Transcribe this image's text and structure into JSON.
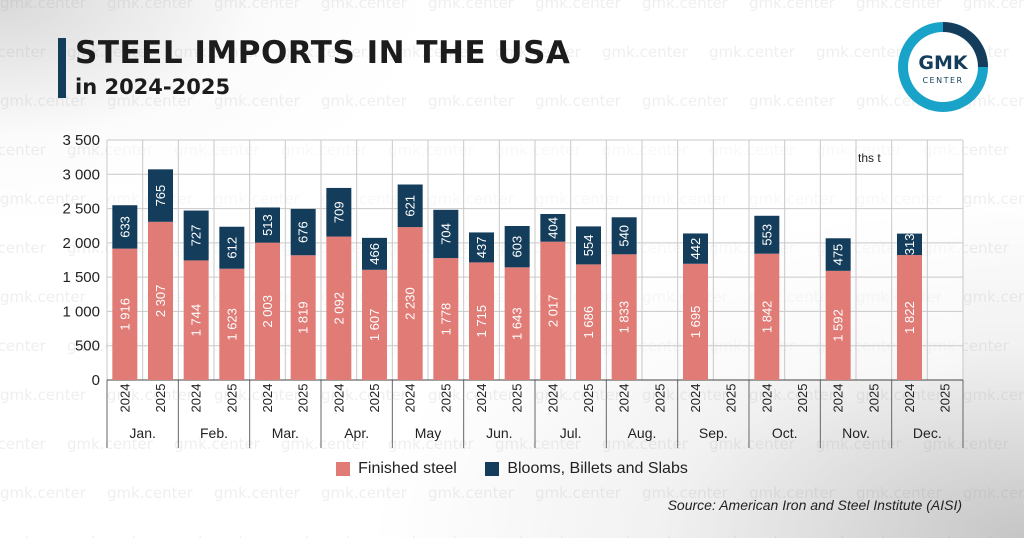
{
  "title": "STEEL IMPORTS IN THE USA",
  "subtitle": "in 2024-2025",
  "watermark_text": "gmk.center",
  "logo": {
    "line1": "GMK",
    "line2": "CENTER",
    "ring_color": "#1aa3c8",
    "text_color": "#143d5c"
  },
  "unit_label": "ths t",
  "source": "Source: American Iron and Steel Institute (AISI)",
  "colors": {
    "finished": "#e07b76",
    "blooms": "#143d5c"
  },
  "chart_data": {
    "type": "bar",
    "stacked": true,
    "ylim": [
      0,
      3500
    ],
    "yticks": [
      "0",
      "500",
      "1 000",
      "1 500",
      "2 000",
      "2 500",
      "3 000",
      "3 500"
    ],
    "grid": true,
    "legend_position": "bottom",
    "months": [
      "Jan.",
      "Feb.",
      "Mar.",
      "Apr.",
      "May",
      "Jun.",
      "Jul.",
      "Aug.",
      "Sep.",
      "Oct.",
      "Nov.",
      "Dec."
    ],
    "years": [
      "2024",
      "2025"
    ],
    "series": [
      {
        "name": "Finished steel",
        "values_2024": [
          1916,
          1744,
          2003,
          2092,
          2230,
          1715,
          2017,
          1833,
          1695,
          1842,
          1592,
          1822
        ],
        "values_2025": [
          2307,
          1623,
          1819,
          1607,
          1778,
          1643,
          1686,
          null,
          null,
          null,
          null,
          null
        ],
        "labels_2024": [
          "1 916",
          "1 744",
          "2 003",
          "2 092",
          "2 230",
          "1 715",
          "2 017",
          "1 833",
          "1 695",
          "1 842",
          "1 592",
          "1 822"
        ],
        "labels_2025": [
          "2 307",
          "1 623",
          "1 819",
          "1 607",
          "1 778",
          "1 643",
          "1 686",
          "",
          "",
          "",
          "",
          ""
        ]
      },
      {
        "name": "Blooms, Billets and Slabs",
        "values_2024": [
          633,
          727,
          513,
          709,
          621,
          437,
          404,
          540,
          442,
          553,
          475,
          313
        ],
        "values_2025": [
          765,
          612,
          676,
          466,
          704,
          603,
          554,
          null,
          null,
          null,
          null,
          null
        ],
        "labels_2024": [
          "633",
          "727",
          "513",
          "709",
          "621",
          "437",
          "404",
          "540",
          "442",
          "553",
          "475",
          "313"
        ],
        "labels_2025": [
          "765",
          "612",
          "676",
          "466",
          "704",
          "603",
          "554",
          "",
          "",
          "",
          "",
          ""
        ]
      }
    ]
  }
}
